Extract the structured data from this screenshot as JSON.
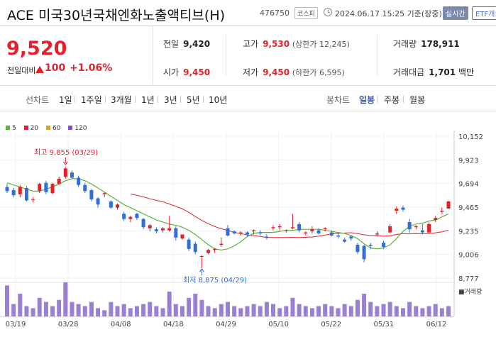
{
  "header": {
    "title": "ACE 미국30년국채엔화노출액티브(H)",
    "code": "476750",
    "market": "코스피",
    "datetime": "2024.06.17 15:25 기준(장중)",
    "realtime": "실시간",
    "etf": "ETF개요"
  },
  "price": {
    "current": "9,520",
    "change_label": "전일대비",
    "change": "100",
    "change_pct": "+1.06%"
  },
  "stats": {
    "prev_label": "전일",
    "prev": "9,420",
    "high_label": "고가",
    "high": "9,530",
    "upper_limit": "(상한가 12,245)",
    "volume_label": "거래량",
    "volume": "178,911",
    "open_label": "시가",
    "open": "9,450",
    "low_label": "저가",
    "low": "9,450",
    "lower_limit": "(하한가 6,595)",
    "amount_label": "거래대금",
    "amount": "1,701",
    "amount_unit": "백만"
  },
  "tabs": {
    "line_label": "선차트",
    "line_items": [
      "1일",
      "1주일",
      "3개월",
      "1년",
      "3년",
      "5년",
      "10년"
    ],
    "candle_label": "봉차트",
    "candle_items": [
      "일봉",
      "주봉",
      "월봉"
    ],
    "active_candle": "일봉"
  },
  "colors": {
    "up": "#e3212c",
    "down": "#2f6fd6",
    "ma5": "#58b53a",
    "ma20": "#e3212c",
    "ma60": "#d9a520",
    "ma120": "#8a4fc2",
    "volume": "#9b7fd1"
  },
  "chart_data": {
    "type": "candlestick",
    "legend": [
      {
        "name": "5",
        "color": "#58b53a"
      },
      {
        "name": "20",
        "color": "#e3212c"
      },
      {
        "name": "60",
        "color": "#d9a520"
      },
      {
        "name": "120",
        "color": "#8a4fc2"
      }
    ],
    "y_ticks": [
      "10,152",
      "9,923",
      "9,694",
      "9,465",
      "9,235",
      "9,006",
      "8,777"
    ],
    "ylim": [
      8777,
      10152
    ],
    "x_ticks": [
      "03/19",
      "03/28",
      "04/08",
      "04/18",
      "04/29",
      "05/10",
      "05/22",
      "05/31",
      "06/12"
    ],
    "annotations": {
      "high": "최고 9,855 (03/29)",
      "low": "최저 8,875 (04/29)"
    },
    "volume_label": "거래량",
    "candles": [
      [
        9660,
        9690,
        9600,
        9620
      ],
      [
        9630,
        9650,
        9560,
        9580
      ],
      [
        9590,
        9680,
        9560,
        9660
      ],
      [
        9650,
        9670,
        9520,
        9530
      ],
      [
        9540,
        9560,
        9510,
        9540
      ],
      [
        9620,
        9700,
        9600,
        9690
      ],
      [
        9700,
        9720,
        9590,
        9610
      ],
      [
        9600,
        9700,
        9590,
        9690
      ],
      [
        9690,
        9760,
        9680,
        9740
      ],
      [
        9760,
        9855,
        9740,
        9840
      ],
      [
        9800,
        9820,
        9740,
        9750
      ],
      [
        9750,
        9770,
        9660,
        9680
      ],
      [
        9680,
        9700,
        9600,
        9620
      ],
      [
        9630,
        9640,
        9520,
        9540
      ],
      [
        9550,
        9560,
        9460,
        9490
      ],
      [
        9590,
        9610,
        9560,
        9600
      ],
      [
        9520,
        9530,
        9450,
        9460
      ],
      [
        9460,
        9500,
        9440,
        9490
      ],
      [
        9400,
        9420,
        9330,
        9350
      ],
      [
        9350,
        9380,
        9320,
        9370
      ],
      [
        9400,
        9410,
        9340,
        9360
      ],
      [
        9350,
        9360,
        9250,
        9270
      ],
      [
        9260,
        9300,
        9230,
        9290
      ],
      [
        9250,
        9270,
        9210,
        9230
      ],
      [
        9240,
        9270,
        9220,
        9260
      ],
      [
        9240,
        9380,
        9230,
        9260
      ],
      [
        9260,
        9280,
        9140,
        9170
      ],
      [
        9160,
        9200,
        9150,
        9200
      ],
      [
        9150,
        9170,
        9040,
        9060
      ],
      [
        9110,
        9130,
        9010,
        9030
      ],
      [
        8990,
        9000,
        8875,
        8990
      ],
      [
        9020,
        9060,
        9010,
        9050
      ],
      [
        9050,
        9070,
        9020,
        9060
      ],
      [
        9100,
        9170,
        9080,
        9110
      ],
      [
        9260,
        9290,
        9180,
        9190
      ],
      [
        9230,
        9240,
        9200,
        9210
      ],
      [
        9210,
        9230,
        9190,
        9220
      ],
      [
        9220,
        9230,
        9180,
        9200
      ],
      [
        9230,
        9250,
        9200,
        9240
      ],
      [
        9220,
        9240,
        9190,
        9210
      ],
      [
        9180,
        9200,
        9150,
        9170
      ],
      [
        9260,
        9290,
        9240,
        9270
      ],
      [
        9270,
        9300,
        9240,
        9280
      ],
      [
        9240,
        9250,
        9220,
        9240
      ],
      [
        9260,
        9400,
        9250,
        9270
      ],
      [
        9300,
        9320,
        9220,
        9240
      ],
      [
        9210,
        9230,
        9190,
        9220
      ],
      [
        9230,
        9280,
        9210,
        9250
      ],
      [
        9240,
        9260,
        9200,
        9210
      ],
      [
        9250,
        9270,
        9230,
        9260
      ],
      [
        9220,
        9240,
        9180,
        9190
      ],
      [
        9190,
        9210,
        9160,
        9180
      ],
      [
        9150,
        9170,
        9120,
        9130
      ],
      [
        9180,
        9190,
        9140,
        9160
      ],
      [
        9100,
        9120,
        9010,
        9030
      ],
      [
        9090,
        9100,
        8930,
        8960
      ],
      [
        9100,
        9120,
        9060,
        9090
      ],
      [
        9200,
        9230,
        9180,
        9210
      ],
      [
        9120,
        9140,
        9060,
        9080
      ],
      [
        9220,
        9300,
        9210,
        9280
      ],
      [
        9430,
        9470,
        9400,
        9450
      ],
      [
        9460,
        9480,
        9420,
        9440
      ],
      [
        9320,
        9350,
        9220,
        9250
      ],
      [
        9270,
        9290,
        9250,
        9280
      ],
      [
        9240,
        9300,
        9200,
        9220
      ],
      [
        9220,
        9320,
        9210,
        9300
      ],
      [
        9340,
        9380,
        9320,
        9360
      ],
      [
        9420,
        9460,
        9400,
        9430
      ],
      [
        9450,
        9530,
        9450,
        9520
      ]
    ],
    "volumes": [
      30,
      12,
      22,
      10,
      8,
      18,
      14,
      10,
      16,
      33,
      14,
      12,
      10,
      14,
      8,
      6,
      14,
      10,
      12,
      8,
      10,
      12,
      14,
      10,
      8,
      24,
      12,
      10,
      18,
      22,
      16,
      10,
      8,
      12,
      14,
      10,
      8,
      10,
      12,
      10,
      14,
      12,
      8,
      10,
      18,
      12,
      10,
      8,
      10,
      12,
      10,
      8,
      12,
      10,
      16,
      22,
      14,
      10,
      12,
      14,
      10,
      8,
      14,
      10,
      8,
      10,
      12,
      8,
      10
    ],
    "ma5": [
      9700,
      9680,
      9660,
      9640,
      9620,
      9620,
      9640,
      9660,
      9690,
      9720,
      9740,
      9740,
      9720,
      9690,
      9650,
      9610,
      9570,
      9530,
      9490,
      9460,
      9430,
      9400,
      9370,
      9340,
      9320,
      9300,
      9290,
      9270,
      9240,
      9200,
      9150,
      9100,
      9060,
      9050,
      9060,
      9090,
      9130,
      9180,
      9210,
      9220,
      9220,
      9220,
      9230,
      9240,
      9240,
      9250,
      9250,
      9250,
      9250,
      9240,
      9230,
      9220,
      9210,
      9190,
      9160,
      9110,
      9070,
      9060,
      9070,
      9100,
      9160,
      9230,
      9280,
      9300,
      9310,
      9330,
      9340,
      9370,
      9400
    ]
  }
}
